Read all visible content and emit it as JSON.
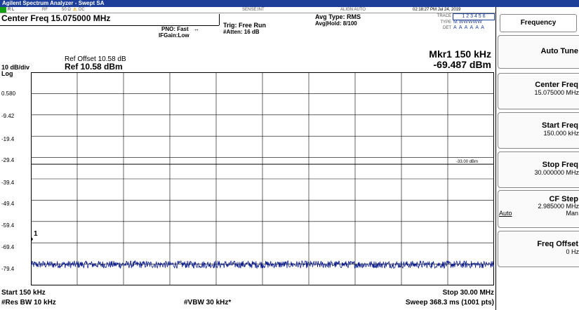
{
  "app": {
    "title": "Agilent Spectrum Analyzer - Swept SA"
  },
  "status": {
    "rl": "R L",
    "rf": "RF",
    "impedance": "50 Ω",
    "warning": "⚠",
    "dc": "DC",
    "sense": "SENSE:INT",
    "align": "ALIGN AUTO",
    "datetime": "02:18:27 PM Jul 24, 2019"
  },
  "header": {
    "center_freq": "Center Freq 15.075000 MHz",
    "pno": "PNO: Fast",
    "ifgain": "IFGain:Low",
    "trig": "Trig: Free Run",
    "atten": "#Atten: 16 dB",
    "avg_type": "Avg Type: RMS",
    "avg_hold": "Avg|Hold: 8/100",
    "trace_label": "TRACE",
    "trace_nums": "1 2 3 4 5 6",
    "type_label": "TYPE",
    "type_vals": "M WWWWW",
    "det_label": "DET",
    "det_vals": "A A A A A A",
    "ref_offset": "Ref Offset 10.58 dB",
    "scale": "10 dB/div",
    "ref_level": "Ref 10.58 dBm",
    "log": "Log",
    "marker_name": "Mkr1 150 kHz",
    "marker_value": "-69.487 dBm"
  },
  "plot": {
    "y_labels": [
      "0.580",
      "-9.42",
      "-19.4",
      "-29.4",
      "-39.4",
      "-49.4",
      "-59.4",
      "-69.4",
      "-79.4"
    ],
    "limit_line_label": "-33.00 dBm",
    "marker_label": "1"
  },
  "footer": {
    "start": "Start 150 kHz",
    "stop": "Stop 30.00 MHz",
    "rbw": "#Res BW 10 kHz",
    "vbw": "#VBW 30 kHz*",
    "sweep": "Sweep  368.3 ms (1001 pts)"
  },
  "sidebar": {
    "title": "Frequency",
    "buttons": [
      {
        "label": "Auto Tune",
        "value": ""
      },
      {
        "label": "Center Freq",
        "value": "15.075000 MHz"
      },
      {
        "label": "Start Freq",
        "value": "150.000 kHz"
      },
      {
        "label": "Stop Freq",
        "value": "30.000000 MHz"
      },
      {
        "label": "CF Step",
        "value": "2.985000 MHz",
        "auto": "Auto",
        "man": "Man"
      },
      {
        "label": "Freq Offset",
        "value": "0 Hz"
      }
    ]
  },
  "colors": {
    "title_bg": "#1d3f9a",
    "trace": "#0a1a8c",
    "grid": "#000000",
    "rl_indicator": "#16a016"
  },
  "chart_data": {
    "type": "line",
    "x_start_khz": 150,
    "x_stop_khz": 30000,
    "ylim": [
      -90.42,
      10.58
    ],
    "y_ticks": [
      0.58,
      -9.42,
      -19.4,
      -29.4,
      -39.4,
      -49.4,
      -59.4,
      -69.4,
      -79.4
    ],
    "limit_line_dbm": -33.0,
    "marker": {
      "x_khz": 150,
      "y_dbm": -69.487
    },
    "series": [
      {
        "approx_level_dbm": -80.5,
        "noise_span_db": 3.5
      }
    ]
  }
}
